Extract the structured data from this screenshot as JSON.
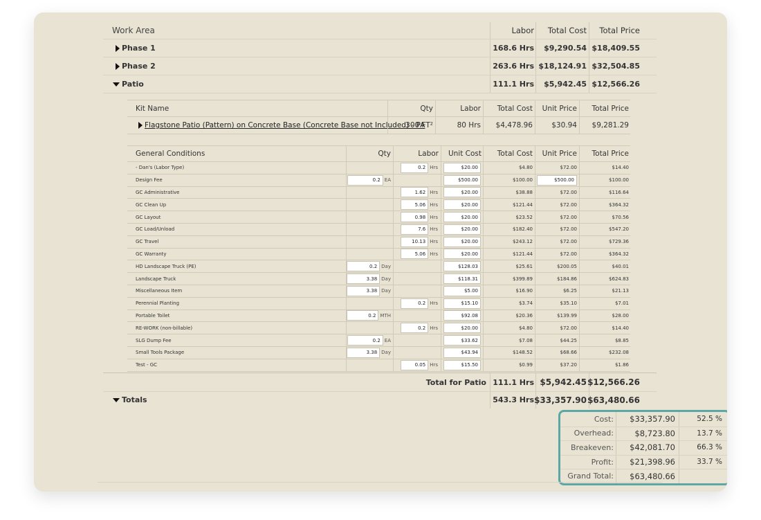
{
  "header": {
    "work_area": "Work Area",
    "labor": "Labor",
    "total_cost": "Total Cost",
    "total_price": "Total Price"
  },
  "phases": [
    {
      "label": "Phase 1",
      "labor": "168.6 Hrs",
      "cost": "$9,290.54",
      "price": "$18,409.55"
    },
    {
      "label": "Phase 2",
      "labor": "263.6 Hrs",
      "cost": "$18,124.91",
      "price": "$32,504.85"
    },
    {
      "label": "Patio",
      "labor": "111.1 Hrs",
      "cost": "$5,942.45",
      "price": "$12,566.26"
    }
  ],
  "kit_header": {
    "kit_name": "Kit Name",
    "qty": "Qty",
    "labor": "Labor",
    "total_cost": "Total Cost",
    "unit_price": "Unit Price",
    "total_price": "Total Price"
  },
  "kit_row": {
    "name": "Flagstone Patio (Pattern) on Concrete Base (Concrete Base not Included) - PA",
    "qty": "300 FT²",
    "labor": "80 Hrs",
    "total_cost": "$4,478.96",
    "unit_price": "$30.94",
    "total_price": "$9,281.29"
  },
  "gc_header": {
    "name": "General Conditions",
    "qty": "Qty",
    "labor": "Labor",
    "unit_cost": "Unit Cost",
    "total_cost": "Total Cost",
    "unit_price": "Unit Price",
    "total_price": "Total Price"
  },
  "gc_rows": [
    {
      "name": "- Dan's (Labor Type)",
      "qty": "",
      "qty_unit": "",
      "labor": "0.2",
      "labor_unit": "Hrs",
      "unit_cost": "$20.00",
      "total_cost": "$4.80",
      "unit_price": "$72.00",
      "price_box": false,
      "total_price": "$14.40"
    },
    {
      "name": "Design Fee",
      "qty": "0.2",
      "qty_unit": "EA",
      "labor": "",
      "labor_unit": "",
      "unit_cost": "$500.00",
      "total_cost": "$100.00",
      "unit_price": "$500.00",
      "price_box": true,
      "total_price": "$100.00"
    },
    {
      "name": "GC Administrative",
      "qty": "",
      "qty_unit": "",
      "labor": "1.62",
      "labor_unit": "Hrs",
      "unit_cost": "$20.00",
      "total_cost": "$38.88",
      "unit_price": "$72.00",
      "price_box": false,
      "total_price": "$116.64"
    },
    {
      "name": "GC Clean Up",
      "qty": "",
      "qty_unit": "",
      "labor": "5.06",
      "labor_unit": "Hrs",
      "unit_cost": "$20.00",
      "total_cost": "$121.44",
      "unit_price": "$72.00",
      "price_box": false,
      "total_price": "$364.32"
    },
    {
      "name": "GC Layout",
      "qty": "",
      "qty_unit": "",
      "labor": "0.98",
      "labor_unit": "Hrs",
      "unit_cost": "$20.00",
      "total_cost": "$23.52",
      "unit_price": "$72.00",
      "price_box": false,
      "total_price": "$70.56"
    },
    {
      "name": "GC Load/Unload",
      "qty": "",
      "qty_unit": "",
      "labor": "7.6",
      "labor_unit": "Hrs",
      "unit_cost": "$20.00",
      "total_cost": "$182.40",
      "unit_price": "$72.00",
      "price_box": false,
      "total_price": "$547.20"
    },
    {
      "name": "GC Travel",
      "qty": "",
      "qty_unit": "",
      "labor": "10.13",
      "labor_unit": "Hrs",
      "unit_cost": "$20.00",
      "total_cost": "$243.12",
      "unit_price": "$72.00",
      "price_box": false,
      "total_price": "$729.36"
    },
    {
      "name": "GC Warranty",
      "qty": "",
      "qty_unit": "",
      "labor": "5.06",
      "labor_unit": "Hrs",
      "unit_cost": "$20.00",
      "total_cost": "$121.44",
      "unit_price": "$72.00",
      "price_box": false,
      "total_price": "$364.32"
    },
    {
      "name": "HD Landscape Truck (PE)",
      "qty": "0.2",
      "qty_unit": "Day",
      "labor": "",
      "labor_unit": "",
      "unit_cost": "$128.03",
      "total_cost": "$25.61",
      "unit_price": "$200.05",
      "price_box": false,
      "total_price": "$40.01"
    },
    {
      "name": "Landscape Truck",
      "qty": "3.38",
      "qty_unit": "Day",
      "labor": "",
      "labor_unit": "",
      "unit_cost": "$118.31",
      "total_cost": "$399.89",
      "unit_price": "$184.86",
      "price_box": false,
      "total_price": "$624.83"
    },
    {
      "name": "Miscellaneous Item",
      "qty": "3.38",
      "qty_unit": "Day",
      "labor": "",
      "labor_unit": "",
      "unit_cost": "$5.00",
      "total_cost": "$16.90",
      "unit_price": "$6.25",
      "price_box": false,
      "total_price": "$21.13"
    },
    {
      "name": "Perennial Planting",
      "qty": "",
      "qty_unit": "",
      "labor": "0.2",
      "labor_unit": "Hrs",
      "unit_cost": "$15.10",
      "total_cost": "$3.74",
      "unit_price": "$35.10",
      "price_box": false,
      "total_price": "$7.01"
    },
    {
      "name": "Portable Toilet",
      "qty": "0.2",
      "qty_unit": "MTH",
      "labor": "",
      "labor_unit": "",
      "unit_cost": "$92.08",
      "total_cost": "$20.36",
      "unit_price": "$139.99",
      "price_box": false,
      "total_price": "$28.00"
    },
    {
      "name": "RE-WORK (non-billable)",
      "qty": "",
      "qty_unit": "",
      "labor": "0.2",
      "labor_unit": "Hrs",
      "unit_cost": "$20.00",
      "total_cost": "$4.80",
      "unit_price": "$72.00",
      "price_box": false,
      "total_price": "$14.40"
    },
    {
      "name": "SLG Dump Fee",
      "qty": "0.2",
      "qty_unit": "EA",
      "labor": "",
      "labor_unit": "",
      "unit_cost": "$33.62",
      "total_cost": "$7.08",
      "unit_price": "$44.25",
      "price_box": false,
      "total_price": "$8.85"
    },
    {
      "name": "Small Tools Package",
      "qty": "3.38",
      "qty_unit": "Day",
      "labor": "",
      "labor_unit": "",
      "unit_cost": "$43.94",
      "total_cost": "$148.52",
      "unit_price": "$68.66",
      "price_box": false,
      "total_price": "$232.08"
    },
    {
      "name": "Test - GC",
      "qty": "",
      "qty_unit": "",
      "labor": "0.05",
      "labor_unit": "Hrs",
      "unit_cost": "$15.50",
      "total_cost": "$0.99",
      "unit_price": "$37.20",
      "price_box": false,
      "total_price": "$1.86"
    }
  ],
  "patio_total": {
    "label": "Total for Patio",
    "labor": "111.1 Hrs",
    "cost": "$5,942.45",
    "price": "$12,566.26"
  },
  "totals": {
    "label": "Totals",
    "labor": "543.3 Hrs",
    "cost": "$33,357.90",
    "price": "$63,480.66"
  },
  "summary": [
    {
      "label": "Cost:",
      "value": "$33,357.90",
      "pct": "52.5 %"
    },
    {
      "label": "Overhead:",
      "value": "$8,723.80",
      "pct": "13.7 %"
    },
    {
      "label": "Breakeven:",
      "value": "$42,081.70",
      "pct": "66.3 %"
    },
    {
      "label": "Profit:",
      "value": "$21,398.96",
      "pct": "33.7 %"
    },
    {
      "label": "Grand Total:",
      "value": "$63,480.66",
      "pct": ""
    }
  ]
}
